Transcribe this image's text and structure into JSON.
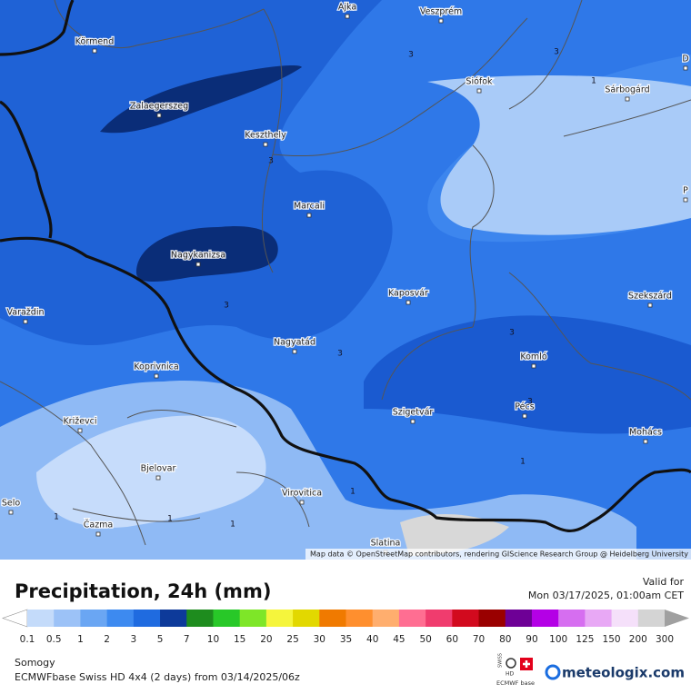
{
  "map": {
    "cities": [
      "Ajka",
      "Veszprém",
      "Körmend",
      "Zalaegerszeg",
      "Siófok",
      "Sárbogárd",
      "Keszthely",
      "Marcali",
      "Nagykanizsa",
      "Kaposvár",
      "Szekszárd",
      "Varaždin",
      "Nagyatád",
      "Komló",
      "Koprivnica",
      "Pécs",
      "Szigetvár",
      "Križevci",
      "Mohács",
      "Bjelovar",
      "Virovitica",
      "Selo",
      "Čazma",
      "Slatina",
      "D",
      "P"
    ],
    "contour_labels": [
      3,
      3,
      3,
      3,
      3,
      3,
      3,
      1,
      1,
      1,
      1,
      1,
      1
    ],
    "attribution": "Map data © OpenStreetMap contributors, rendering GIScience Research Group @ Heidelberg University"
  },
  "header": {
    "title": "Precipitation, 24h (mm)",
    "valid_label": "Valid for",
    "valid_time": "Mon 03/17/2025, 01:00am CET"
  },
  "legend": {
    "labels": [
      0.1,
      0.5,
      1,
      2,
      3,
      5,
      7,
      10,
      15,
      20,
      25,
      30,
      35,
      40,
      45,
      50,
      60,
      70,
      80,
      90,
      100,
      125,
      150,
      200,
      300
    ],
    "colors": [
      "#c4dbfa",
      "#9cc2f7",
      "#6aa6f3",
      "#3d8af0",
      "#1f6be0",
      "#0d3a9a",
      "#1e8c1e",
      "#28c828",
      "#7ee628",
      "#f5f53c",
      "#e2d800",
      "#f07a00",
      "#ff8f2e",
      "#ffae6e",
      "#ff6e92",
      "#f03c6e",
      "#d20a1e",
      "#9a0000",
      "#6e0096",
      "#b400e6",
      "#d66ef0",
      "#e8a8f5",
      "#f5e0fa",
      "#d4d4d4"
    ],
    "below_color": "#ffffff",
    "above_color": "#a0a0a0"
  },
  "footer": {
    "region": "Somogy",
    "model": "ECMWFbase Swiss HD 4x4 (2 days) from  03/14/2025/06z",
    "brand": "meteologix.com",
    "badge_swiss": "SWISS",
    "badge_hd": "HD",
    "badge_base": "ECMWF base"
  }
}
